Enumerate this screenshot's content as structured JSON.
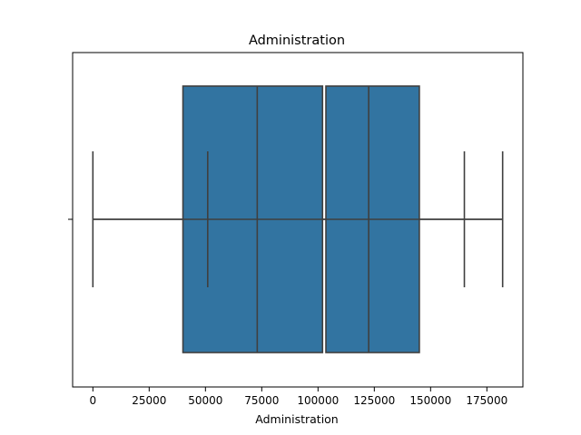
{
  "chart_data": {
    "type": "boxplot",
    "orientation": "horizontal",
    "title": "Administration",
    "xlabel": "Administration",
    "ylabel": "",
    "xlim": [
      -9000,
      191000
    ],
    "xticks": [
      0,
      25000,
      50000,
      75000,
      100000,
      125000,
      150000,
      175000
    ],
    "xtick_labels": [
      "0",
      "25000",
      "50000",
      "75000",
      "100000",
      "125000",
      "150000",
      "175000"
    ],
    "box_color": "#3274a1",
    "line_color": "#3f3f3f",
    "boxes": [
      {
        "name": "box-left",
        "q1": 40000,
        "q3": 102000,
        "median": 73000
      },
      {
        "name": "box-right",
        "q1": 103500,
        "q3": 145000,
        "median": 122500
      }
    ],
    "whisker_line": {
      "from": 0,
      "to": 182000
    },
    "vertical_markers": [
      0,
      51000,
      165000,
      182000
    ]
  }
}
